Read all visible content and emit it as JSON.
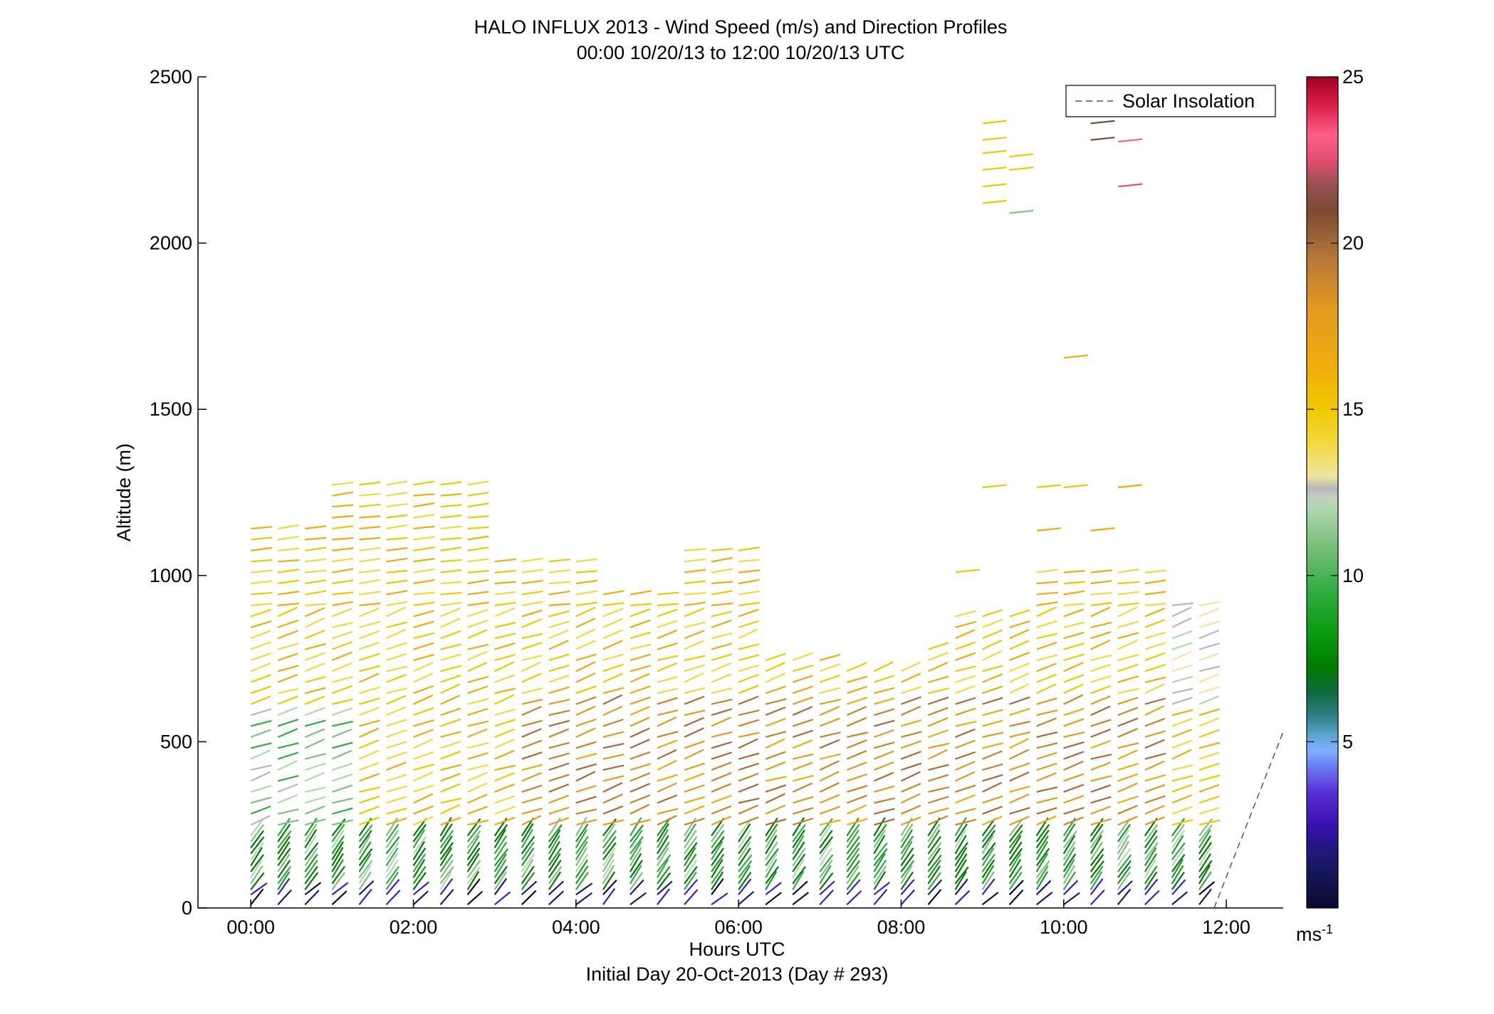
{
  "chart_data": {
    "type": "wind-barb profile",
    "title": "HALO INFLUX 2013 - Wind Speed (m/s) and Direction Profiles",
    "subtitle": "00:00 10/20/13 to 12:00 10/20/13  UTC",
    "xlabel": "Hours UTC",
    "xlabel2": "Initial Day 20-Oct-2013 (Day # 293)",
    "ylabel": "Altitude (m)",
    "x_ticks": [
      "00:00",
      "02:00",
      "04:00",
      "06:00",
      "08:00",
      "10:00",
      "12:00"
    ],
    "x_tick_hours": [
      0,
      2,
      4,
      6,
      8,
      10,
      12
    ],
    "xlim_hours": [
      -0.65,
      12.7
    ],
    "y_ticks": [
      "0",
      "500",
      "1000",
      "1500",
      "2000",
      "2500"
    ],
    "y_tick_values": [
      0,
      500,
      1000,
      1500,
      2000,
      2500
    ],
    "ylim": [
      0,
      2500
    ],
    "legend": {
      "entries": [
        "Solar Insolation"
      ],
      "position": "top-right",
      "line": "dashed"
    },
    "colorbar": {
      "ticks": [
        "5",
        "10",
        "15",
        "20",
        "25"
      ],
      "tick_values": [
        5,
        10,
        15,
        20,
        25
      ],
      "range": [
        0,
        25
      ],
      "unit_label": "ms",
      "unit_exponent": "-1"
    },
    "solar_insolation": [
      [
        11.85,
        0
      ],
      [
        12.7,
        530
      ]
    ],
    "profile_interval_hours": 0.3333,
    "bands": [
      {
        "level": "surface",
        "alt_range_m": [
          0,
          40
        ],
        "speed_ms": 2,
        "dir_deg": 240
      },
      {
        "level": "low",
        "alt_range_m": [
          50,
          230
        ],
        "speed_ms": 9,
        "dir_deg": 215
      },
      {
        "level": "mid",
        "alt_range_m": [
          240,
          900
        ],
        "speed_ms": 16,
        "dir_deg": 255
      },
      {
        "level": "upper",
        "alt_range_m": [
          900,
          1300
        ],
        "speed_ms": 15,
        "dir_deg": 265
      }
    ],
    "sparse_high": [
      {
        "hour": 9.0,
        "alt": 2360,
        "speed": 15
      },
      {
        "hour": 9.0,
        "alt": 2310,
        "speed": 15
      },
      {
        "hour": 9.0,
        "alt": 2270,
        "speed": 15
      },
      {
        "hour": 9.0,
        "alt": 2220,
        "speed": 15
      },
      {
        "hour": 9.0,
        "alt": 2170,
        "speed": 15
      },
      {
        "hour": 9.0,
        "alt": 2120,
        "speed": 15
      },
      {
        "hour": 9.33,
        "alt": 2260,
        "speed": 15
      },
      {
        "hour": 9.33,
        "alt": 2220,
        "speed": 15
      },
      {
        "hour": 9.33,
        "alt": 2090,
        "speed": 11
      },
      {
        "hour": 10.33,
        "alt": 2360,
        "speed": 20
      },
      {
        "hour": 10.33,
        "alt": 2310,
        "speed": 20
      },
      {
        "hour": 10.67,
        "alt": 2305,
        "speed": 23
      },
      {
        "hour": 10.67,
        "alt": 2170,
        "speed": 22
      },
      {
        "hour": 10.0,
        "alt": 1655,
        "speed": 16
      },
      {
        "hour": 9.0,
        "alt": 1265,
        "speed": 15
      },
      {
        "hour": 9.67,
        "alt": 1265,
        "speed": 15
      },
      {
        "hour": 10.0,
        "alt": 1265,
        "speed": 15
      },
      {
        "hour": 10.67,
        "alt": 1265,
        "speed": 16
      },
      {
        "hour": 9.67,
        "alt": 1135,
        "speed": 16
      },
      {
        "hour": 10.33,
        "alt": 1135,
        "speed": 16
      },
      {
        "hour": 8.67,
        "alt": 1010,
        "speed": 15
      }
    ]
  }
}
